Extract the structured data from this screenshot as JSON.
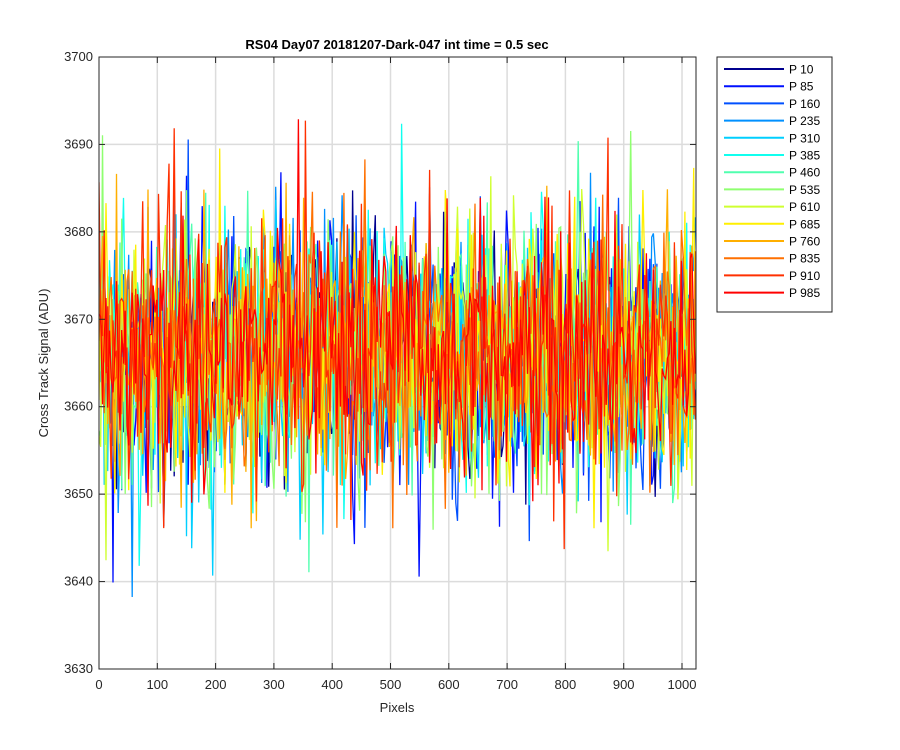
{
  "chart_data": {
    "type": "line",
    "title": "RS04 Day07 20181207-Dark-047 int time = 0.5 sec",
    "xlabel": "Pixels",
    "ylabel": "Cross Track Signal (ADU)",
    "xlim": [
      0,
      1024
    ],
    "ylim": [
      3630,
      3700
    ],
    "xticks": [
      0,
      100,
      200,
      300,
      400,
      500,
      600,
      700,
      800,
      900,
      1000
    ],
    "yticks": [
      3630,
      3640,
      3650,
      3660,
      3670,
      3680,
      3690,
      3700
    ],
    "grid": true,
    "legend_position": "outside-top-right",
    "series_mean": 3666,
    "series_spread": [
      3637,
      3694
    ],
    "series": [
      {
        "name": "P 10",
        "color": "#00008F"
      },
      {
        "name": "P 85",
        "color": "#0010FF"
      },
      {
        "name": "P 160",
        "color": "#0050FF"
      },
      {
        "name": "P 235",
        "color": "#0090FF"
      },
      {
        "name": "P 310",
        "color": "#00CFFF"
      },
      {
        "name": "P 385",
        "color": "#10FFEF"
      },
      {
        "name": "P 460",
        "color": "#50FFAF"
      },
      {
        "name": "P 535",
        "color": "#8FFF70"
      },
      {
        "name": "P 610",
        "color": "#CFFF30"
      },
      {
        "name": "P 685",
        "color": "#FFEF00"
      },
      {
        "name": "P 760",
        "color": "#FFAF00"
      },
      {
        "name": "P 835",
        "color": "#FF7000"
      },
      {
        "name": "P 910",
        "color": "#FF3000"
      },
      {
        "name": "P 985",
        "color": "#FF0000"
      }
    ]
  }
}
